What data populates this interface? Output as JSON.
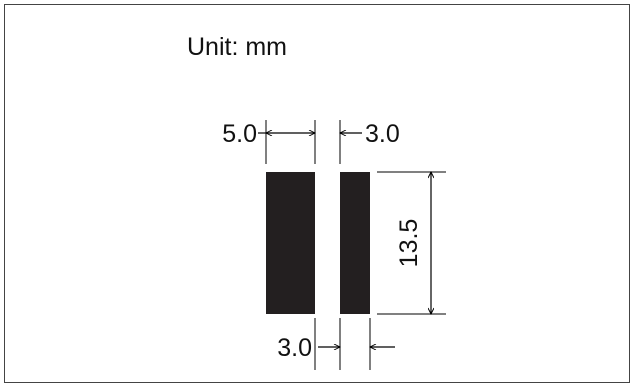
{
  "diagram": {
    "unit_label": "Unit: mm",
    "dimensions": {
      "pad_width": "5.0",
      "gap": "3.0",
      "pad_height": "13.5",
      "pad_width_small": "3.0"
    },
    "colors": {
      "pad": "#231f20",
      "line": "#000000",
      "frame": "#444444"
    }
  }
}
